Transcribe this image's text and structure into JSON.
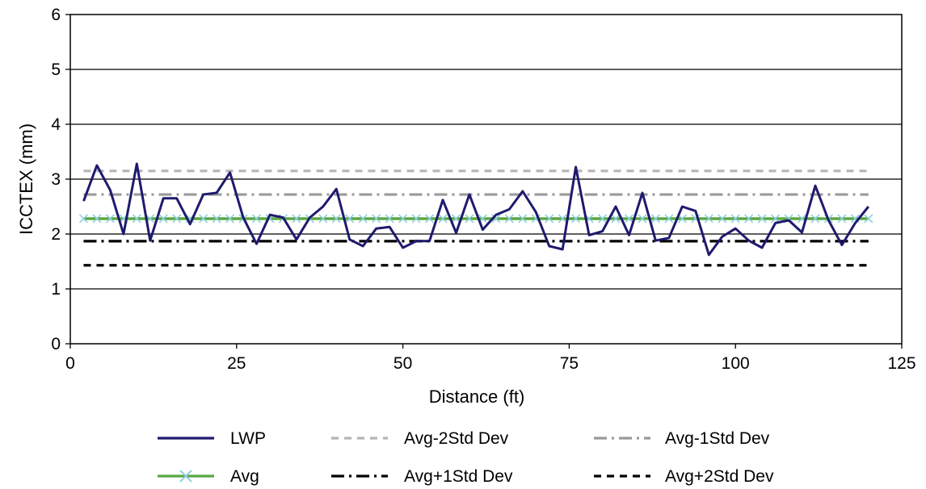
{
  "chart_data": {
    "type": "line",
    "xlabel": "Distance (ft)",
    "ylabel": "ICCTEX (mm)",
    "xlim": [
      0,
      125
    ],
    "ylim": [
      0,
      6
    ],
    "x_ticks": [
      0,
      25,
      50,
      75,
      100,
      125
    ],
    "y_ticks": [
      0,
      1,
      2,
      3,
      4,
      5,
      6
    ],
    "grid": "horizontal",
    "legend_position": "bottom",
    "x": [
      2,
      4,
      6,
      8,
      10,
      12,
      14,
      16,
      18,
      20,
      22,
      24,
      26,
      28,
      30,
      32,
      34,
      36,
      38,
      40,
      42,
      44,
      46,
      48,
      50,
      52,
      54,
      56,
      58,
      60,
      62,
      64,
      66,
      68,
      70,
      72,
      74,
      76,
      78,
      80,
      82,
      84,
      86,
      88,
      90,
      92,
      94,
      96,
      98,
      100,
      102,
      104,
      106,
      108,
      110,
      112,
      114,
      116,
      118,
      120
    ],
    "series": [
      {
        "name": "LWP",
        "color": "#1f1a6e",
        "style": "solid",
        "values": [
          2.6,
          3.25,
          2.8,
          2.0,
          3.28,
          1.88,
          2.65,
          2.65,
          2.18,
          2.72,
          2.75,
          3.12,
          2.3,
          1.82,
          2.35,
          2.3,
          1.9,
          2.3,
          2.5,
          2.82,
          1.9,
          1.78,
          2.1,
          2.13,
          1.75,
          1.87,
          1.87,
          2.62,
          2.02,
          2.72,
          2.08,
          2.35,
          2.45,
          2.78,
          2.4,
          1.78,
          1.72,
          3.22,
          1.98,
          2.05,
          2.5,
          1.98,
          2.75,
          1.88,
          1.93,
          2.5,
          2.42,
          1.62,
          1.95,
          2.1,
          1.88,
          1.75,
          2.2,
          2.25,
          2.03,
          2.88,
          2.25,
          1.8,
          2.2,
          2.5
        ]
      },
      {
        "name": "Avg",
        "color": "#5aa845",
        "marker_color": "#8fd0dc",
        "style": "solid-x",
        "value": 2.28
      },
      {
        "name": "Avg-2Std Dev",
        "color": "#b5b5b5",
        "style": "dashed",
        "value": 3.15
      },
      {
        "name": "Avg-1Std Dev",
        "color": "#9a9a9a",
        "style": "dash-dot",
        "value": 2.72
      },
      {
        "name": "Avg+1Std Dev",
        "color": "#000000",
        "style": "dash-dot",
        "value": 1.87
      },
      {
        "name": "Avg+2Std Dev",
        "color": "#000000",
        "style": "dashed",
        "value": 1.43
      }
    ]
  }
}
